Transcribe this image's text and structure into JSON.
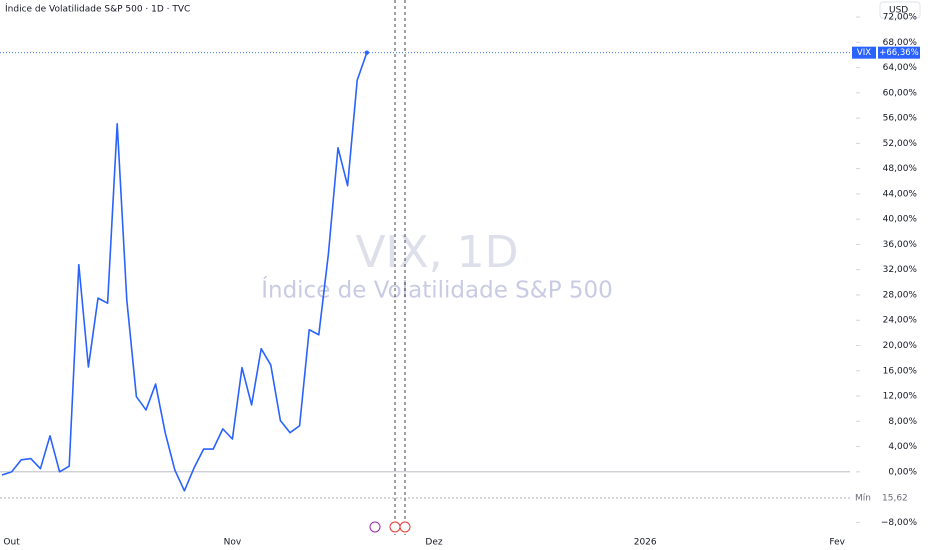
{
  "chart_data": {
    "type": "line",
    "title": "Índice de Volatilidade S&P 500 · 1D · TVC",
    "watermark": "VIX, 1D",
    "watermark_subtitle": "Índice de Volatilidade S&P 500",
    "currency": "USD",
    "min_label": "Mín",
    "min_value_label": "15,62",
    "last_value_label": "+66,36%",
    "categories": [
      null,
      "Out",
      null,
      null,
      null,
      null,
      null,
      null,
      null,
      null,
      null,
      null,
      null,
      null,
      null,
      null,
      null,
      null,
      null,
      null,
      null,
      null,
      null,
      null,
      "Nov",
      null,
      null,
      null,
      null,
      null,
      null,
      null,
      null,
      null,
      null,
      null,
      null,
      null,
      null,
      null,
      null,
      null,
      null,
      null,
      null,
      "Dez",
      null,
      null,
      null,
      null,
      null,
      null,
      null,
      null,
      null,
      null,
      null,
      null,
      null,
      null,
      null,
      null,
      null,
      null,
      null,
      null,
      null,
      "2026",
      null,
      null,
      null,
      null,
      null,
      null,
      null,
      null,
      null,
      null,
      null,
      null,
      null,
      null,
      null,
      null,
      null,
      null,
      null,
      "Fev",
      null
    ],
    "series": [
      {
        "name": "VIX",
        "color": "#2962ff",
        "values": [
          -0.5,
          0,
          1.9,
          2.1,
          0.5,
          5.7,
          0,
          0.9,
          32.8,
          16.6,
          27.5,
          26.7,
          55.1,
          27.2,
          11.9,
          9.8,
          13.9,
          6.2,
          0.3,
          -3.0,
          0.6,
          3.6,
          3.6,
          6.8,
          5.2,
          16.5,
          10.6,
          19.5,
          16.9,
          8.1,
          6.2,
          7.3,
          22.5,
          21.7,
          34.5,
          51.3,
          45.3,
          62.0,
          66.36,
          null,
          null,
          null,
          null,
          null,
          null,
          null,
          null,
          null,
          null,
          null,
          null,
          null,
          null,
          null,
          null,
          null,
          null,
          null,
          null,
          null,
          null,
          null,
          null,
          null,
          null,
          null,
          null,
          null,
          null,
          null,
          null,
          null,
          null,
          null,
          null,
          null,
          null,
          null,
          null,
          null,
          null,
          null,
          null,
          null,
          null,
          null,
          null,
          null,
          null
        ]
      }
    ],
    "ylim": [
      -10,
      74.7
    ],
    "yticks": [
      {
        "value": 72,
        "label": "72,00%"
      },
      {
        "value": 68,
        "label": "68,00%"
      },
      {
        "value": 64,
        "label": "64,00%"
      },
      {
        "value": 60,
        "label": "60,00%"
      },
      {
        "value": 56,
        "label": "56,00%"
      },
      {
        "value": 52,
        "label": "52,00%"
      },
      {
        "value": 48,
        "label": "48,00%"
      },
      {
        "value": 44,
        "label": "44,00%"
      },
      {
        "value": 40,
        "label": "40,00%"
      },
      {
        "value": 36,
        "label": "36,00%"
      },
      {
        "value": 32,
        "label": "32,00%"
      },
      {
        "value": 28,
        "label": "28,00%"
      },
      {
        "value": 24,
        "label": "24,00%"
      },
      {
        "value": 20,
        "label": "20,00%"
      },
      {
        "value": 16,
        "label": "16,00%"
      },
      {
        "value": 12,
        "label": "12,00%"
      },
      {
        "value": 8,
        "label": "8,00%"
      },
      {
        "value": 4,
        "label": "4,00%"
      },
      {
        "value": 0,
        "label": "0,00%"
      },
      {
        "value": -8,
        "label": "−8,00%"
      }
    ],
    "grid": false
  }
}
